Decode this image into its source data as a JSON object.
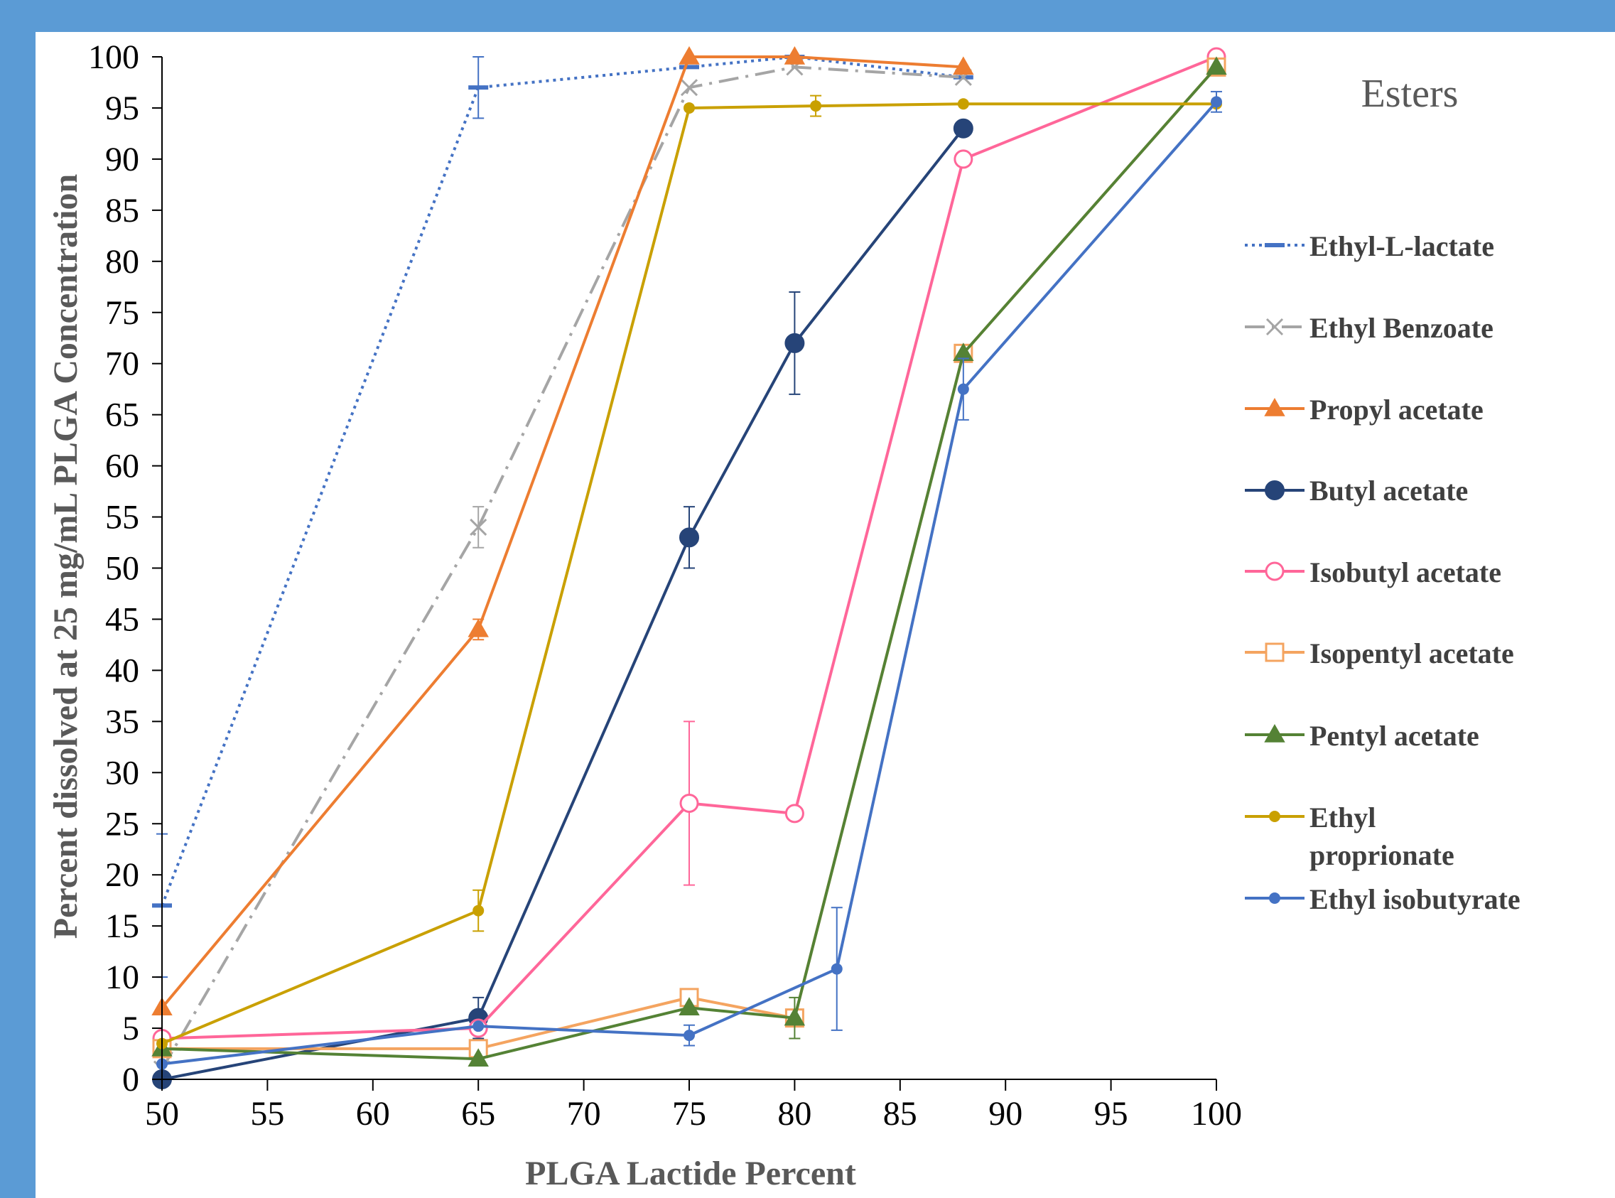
{
  "chart_data": {
    "type": "line",
    "xlabel": "PLGA Lactide Percent",
    "ylabel": "Percent dissolved at 25 mg/mL PLGA Concentration",
    "legend_title": "Esters",
    "legend_position": "right",
    "xlim": [
      50,
      100
    ],
    "ylim": [
      0,
      100
    ],
    "x_ticks": [
      "50",
      "55",
      "60",
      "65",
      "70",
      "75",
      "80",
      "85",
      "90",
      "95",
      "100"
    ],
    "y_ticks": [
      "0",
      "5",
      "10",
      "15",
      "20",
      "25",
      "30",
      "35",
      "40",
      "45",
      "50",
      "55",
      "60",
      "65",
      "70",
      "75",
      "80",
      "85",
      "90",
      "95",
      "100"
    ],
    "grid": false,
    "series": [
      {
        "name": "Ethyl-L-lactate",
        "color": "#4472c4",
        "line": "dotted",
        "marker": "dash",
        "points": [
          [
            50,
            17
          ],
          [
            65,
            97
          ],
          [
            75,
            99
          ],
          [
            80,
            100
          ],
          [
            88,
            98
          ]
        ],
        "err": [
          7,
          3,
          0,
          0,
          0
        ]
      },
      {
        "name": "Ethyl Benzoate",
        "color": "#a5a5a5",
        "line": "dashdot",
        "marker": "x",
        "points": [
          [
            50,
            1
          ],
          [
            65,
            54
          ],
          [
            75,
            97
          ],
          [
            80,
            99
          ],
          [
            88,
            98
          ]
        ],
        "err": [
          0,
          2,
          0,
          0,
          0
        ]
      },
      {
        "name": "Propyl acetate",
        "color": "#ed7d31",
        "line": "solid",
        "marker": "triangle",
        "points": [
          [
            50,
            7
          ],
          [
            65,
            44
          ],
          [
            75,
            100
          ],
          [
            80,
            100
          ],
          [
            88,
            99
          ]
        ],
        "err": [
          0,
          1,
          0,
          0,
          0
        ]
      },
      {
        "name": "Butyl acetate",
        "color": "#264478",
        "line": "solid",
        "marker": "circle-filled",
        "points": [
          [
            50,
            0
          ],
          [
            65,
            6
          ],
          [
            75,
            53
          ],
          [
            80,
            72
          ],
          [
            88,
            93
          ]
        ],
        "err": [
          0,
          2,
          3,
          5,
          0
        ]
      },
      {
        "name": "Isobutyl acetate",
        "color": "#ff6699",
        "line": "solid",
        "marker": "circle-open",
        "points": [
          [
            50,
            4
          ],
          [
            65,
            5
          ],
          [
            75,
            27
          ],
          [
            80,
            26
          ],
          [
            88,
            90
          ],
          [
            100,
            100
          ]
        ],
        "err": [
          0,
          0,
          8,
          0,
          0,
          0
        ]
      },
      {
        "name": "Isopentyl acetate",
        "color": "#f4a460",
        "line": "solid",
        "marker": "square-open",
        "points": [
          [
            50,
            3
          ],
          [
            65,
            3
          ],
          [
            75,
            8
          ],
          [
            80,
            6
          ],
          [
            88,
            71
          ],
          [
            100,
            99
          ]
        ],
        "err": [
          0,
          0,
          0,
          0,
          0,
          0
        ]
      },
      {
        "name": "Pentyl acetate",
        "color": "#548235",
        "line": "solid",
        "marker": "triangle",
        "points": [
          [
            50,
            3
          ],
          [
            65,
            2
          ],
          [
            75,
            7
          ],
          [
            80,
            6
          ],
          [
            88,
            71
          ],
          [
            100,
            99
          ]
        ],
        "err": [
          0,
          0,
          0,
          2,
          0,
          0
        ]
      },
      {
        "name": "Ethyl proprionate",
        "color": "#c9a000",
        "line": "solid",
        "marker": "dot",
        "points": [
          [
            50,
            3.5
          ],
          [
            65,
            16.5
          ],
          [
            75,
            95
          ],
          [
            81,
            95.2
          ],
          [
            88,
            95.4
          ],
          [
            100,
            95.4
          ]
        ],
        "err": [
          0,
          2,
          0,
          1,
          0,
          0
        ]
      },
      {
        "name": "Ethyl isobutyrate",
        "color": "#4472c4",
        "line": "solid",
        "marker": "dot",
        "points": [
          [
            50,
            1.5
          ],
          [
            65,
            5.2
          ],
          [
            75,
            4.3
          ],
          [
            82,
            10.8
          ],
          [
            88,
            67.5
          ],
          [
            100,
            95.6
          ]
        ],
        "err": [
          0,
          0,
          1,
          6,
          3,
          1
        ]
      }
    ]
  },
  "legend_labels": {
    "s0": "Ethyl-L-lactate",
    "s1": "Ethyl Benzoate",
    "s2": "Propyl acetate",
    "s3": "Butyl acetate",
    "s4": "Isobutyl acetate",
    "s5": "Isopentyl acetate",
    "s6": "Pentyl acetate",
    "s7a": "Ethyl",
    "s7b": "proprionate",
    "s8": "Ethyl isobutyrate"
  }
}
